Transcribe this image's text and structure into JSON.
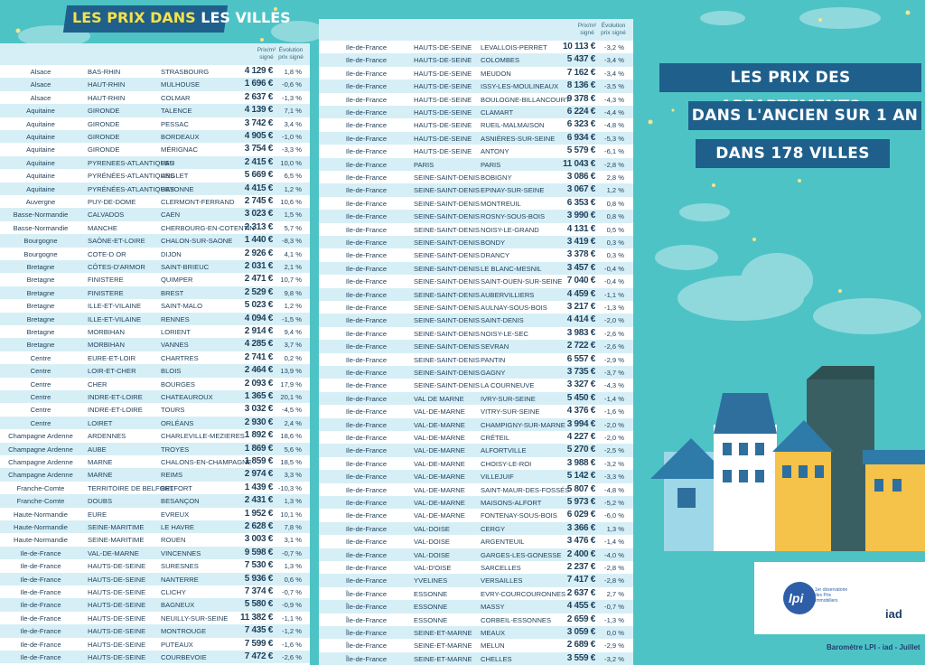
{
  "title_a": "LES PRIX DANS",
  "title_b": "LES VILLES",
  "banner": [
    "LES PRIX DES APPARTEMENTS",
    "DANS L'ANCIEN SUR 1 AN",
    "DANS 178 VILLES"
  ],
  "footer": "Baromètre LPI - iad - Juillet",
  "logos": {
    "lpi": "lpi",
    "lpi_text": "1er observatoire des Prix Immobiliers",
    "iad": "iad"
  },
  "tables": [
    {
      "header": {
        "price": "Prix/m² signé",
        "evolution": "Évolution prix signé"
      },
      "rows": [
        [
          "Alsace",
          "BAS-RHIN",
          "STRASBOURG",
          "4 129 €",
          "1,8 %"
        ],
        [
          "Alsace",
          "HAUT-RHIN",
          "MULHOUSE",
          "1 696 €",
          "-0,6 %"
        ],
        [
          "Alsace",
          "HAUT-RHIN",
          "COLMAR",
          "2 637 €",
          "-1,3 %"
        ],
        [
          "Aquitaine",
          "GIRONDE",
          "TALENCE",
          "4 139 €",
          "7,1 %"
        ],
        [
          "Aquitaine",
          "GIRONDE",
          "PESSAC",
          "3 742 €",
          "3,4 %"
        ],
        [
          "Aquitaine",
          "GIRONDE",
          "BORDEAUX",
          "4 905 €",
          "-1,0 %"
        ],
        [
          "Aquitaine",
          "GIRONDE",
          "MÉRIGNAC",
          "3 754 €",
          "-3,3 %"
        ],
        [
          "Aquitaine",
          "PYRENEES-ATLANTIQUES",
          "PAU",
          "2 415 €",
          "10,0 %"
        ],
        [
          "Aquitaine",
          "PYRÉNÉES-ATLANTIQUES",
          "ANGLET",
          "5 669 €",
          "6,5 %"
        ],
        [
          "Aquitaine",
          "PYRÉNÉES-ATLANTIQUES",
          "BAYONNE",
          "4 415 €",
          "1,2 %"
        ],
        [
          "Auvergne",
          "PUY-DE-DOME",
          "CLERMONT-FERRAND",
          "2 745 €",
          "10,6 %"
        ],
        [
          "Basse-Normandie",
          "CALVADOS",
          "CAEN",
          "3 023 €",
          "1,5 %"
        ],
        [
          "Basse-Normandie",
          "MANCHE",
          "CHERBOURG-EN-COTENTIN",
          "2 313 €",
          "5,7 %"
        ],
        [
          "Bourgogne",
          "SAÔNE-ET-LOIRE",
          "CHALON-SUR-SAONE",
          "1 440 €",
          "-8,3 %"
        ],
        [
          "Bourgogne",
          "COTE-D OR",
          "DIJON",
          "2 926 €",
          "4,1 %"
        ],
        [
          "Bretagne",
          "CÔTES-D'ARMOR",
          "SAINT-BRIEUC",
          "2 031 €",
          "2,1 %"
        ],
        [
          "Bretagne",
          "FINISTERE",
          "QUIMPER",
          "2 471 €",
          "10,7 %"
        ],
        [
          "Bretagne",
          "FINISTERE",
          "BREST",
          "2 529 €",
          "9,8 %"
        ],
        [
          "Bretagne",
          "ILLE-ET-VILAINE",
          "SAINT-MALO",
          "5 023 €",
          "1,2 %"
        ],
        [
          "Bretagne",
          "ILLE-ET-VILAINE",
          "RENNES",
          "4 094 €",
          "-1,5 %"
        ],
        [
          "Bretagne",
          "MORBIHAN",
          "LORIENT",
          "2 914 €",
          "9,4 %"
        ],
        [
          "Bretagne",
          "MORBIHAN",
          "VANNES",
          "4 285 €",
          "3,7 %"
        ],
        [
          "Centre",
          "EURE-ET-LOIR",
          "CHARTRES",
          "2 741 €",
          "0,2 %"
        ],
        [
          "Centre",
          "LOIR-ET-CHER",
          "BLOIS",
          "2 464 €",
          "13,9 %"
        ],
        [
          "Centre",
          "CHER",
          "BOURGES",
          "2 093 €",
          "17,9 %"
        ],
        [
          "Centre",
          "INDRE-ET-LOIRE",
          "CHATEAUROUX",
          "1 365 €",
          "20,1 %"
        ],
        [
          "Centre",
          "INDRE-ET-LOIRE",
          "TOURS",
          "3 032 €",
          "-4,5 %"
        ],
        [
          "Centre",
          "LOIRET",
          "ORLÉANS",
          "2 930 €",
          "2,4 %"
        ],
        [
          "Champagne Ardenne",
          "ARDENNES",
          "CHARLEVILLE-MEZIERES",
          "1 892 €",
          "18,6 %"
        ],
        [
          "Champagne Ardenne",
          "AUBE",
          "TROYES",
          "1 869 €",
          "5,6 %"
        ],
        [
          "Champagne Ardenne",
          "MARNE",
          "CHALONS-EN-CHAMPAGNE",
          "1 859 €",
          "18,5 %"
        ],
        [
          "Champagne Ardenne",
          "MARNE",
          "REIMS",
          "2 974 €",
          "3,3 %"
        ],
        [
          "Franche-Comte",
          "TERRITOIRE DE BELFORT",
          "BELFORT",
          "1 439 €",
          "-10,3 %"
        ],
        [
          "Franche-Comte",
          "DOUBS",
          "BESANÇON",
          "2 431 €",
          "1,3 %"
        ],
        [
          "Haute-Normandie",
          "EURE",
          "EVREUX",
          "1 952 €",
          "10,1 %"
        ],
        [
          "Haute-Normandie",
          "SEINE-MARITIME",
          "LE HAVRE",
          "2 628 €",
          "7,8 %"
        ],
        [
          "Haute-Normandie",
          "SEINE-MARITIME",
          "ROUEN",
          "3 003 €",
          "3,1 %"
        ],
        [
          "Ile-de-France",
          "VAL-DE-MARNE",
          "VINCENNES",
          "9 598 €",
          "-0,7 %"
        ],
        [
          "Ile-de-France",
          "HAUTS-DE-SEINE",
          "SURESNES",
          "7 530 €",
          "1,3 %"
        ],
        [
          "Ile-de-France",
          "HAUTS-DE-SEINE",
          "NANTERRE",
          "5 936 €",
          "0,6 %"
        ],
        [
          "Ile-de-France",
          "HAUTS-DE-SEINE",
          "CLICHY",
          "7 374 €",
          "-0,7 %"
        ],
        [
          "Ile-de-France",
          "HAUTS-DE-SEINE",
          "BAGNEUX",
          "5 580 €",
          "-0,9 %"
        ],
        [
          "Ile-de-France",
          "HAUTS-DE-SEINE",
          "NEUILLY-SUR-SEINE",
          "11 382 €",
          "-1,1 %"
        ],
        [
          "Ile-de-France",
          "HAUTS-DE-SEINE",
          "MONTROUGE",
          "7 435 €",
          "-1,2 %"
        ],
        [
          "Ile-de-France",
          "HAUTS-DE-SEINE",
          "PUTEAUX",
          "7 599 €",
          "-1,6 %"
        ],
        [
          "Ile-de-France",
          "HAUTS-DE-SEINE",
          "COURBEVOIE",
          "7 472 €",
          "-2,6 %"
        ]
      ]
    },
    {
      "header": {
        "price": "Prix/m² signé",
        "evolution": "Évolution prix signé"
      },
      "rows": [
        [
          "Ile-de-France",
          "HAUTS-DE-SEINE",
          "LEVALLOIS-PERRET",
          "10 113 €",
          "-3,2 %"
        ],
        [
          "Ile-de-France",
          "HAUTS-DE-SEINE",
          "COLOMBES",
          "5 437 €",
          "-3,4 %"
        ],
        [
          "Ile-de-France",
          "HAUTS-DE-SEINE",
          "MEUDON",
          "7 162 €",
          "-3,4 %"
        ],
        [
          "Ile-de-France",
          "HAUTS-DE-SEINE",
          "ISSY-LES-MOULINEAUX",
          "8 136 €",
          "-3,5 %"
        ],
        [
          "Ile-de-France",
          "HAUTS-DE-SEINE",
          "BOULOGNE-BILLANCOURT",
          "9 378 €",
          "-4,3 %"
        ],
        [
          "Ile-de-France",
          "HAUTS-DE-SEINE",
          "CLAMART",
          "6 224 €",
          "-4,4 %"
        ],
        [
          "Ile-de-France",
          "HAUTS-DE-SEINE",
          "RUEIL-MALMAISON",
          "6 323 €",
          "-4,8 %"
        ],
        [
          "Ile-de-France",
          "HAUTS-DE-SEINE",
          "ASNIÈRES-SUR-SEINE",
          "6 934 €",
          "-5,3 %"
        ],
        [
          "Ile-de-France",
          "HAUTS-DE-SEINE",
          "ANTONY",
          "5 579 €",
          "-6,1 %"
        ],
        [
          "Ile-de-France",
          "PARIS",
          "PARIS",
          "11 043 €",
          "-2,8 %"
        ],
        [
          "Ile-de-France",
          "SEINE-SAINT-DENIS",
          "BOBIGNY",
          "3 086 €",
          "2,8 %"
        ],
        [
          "Ile-de-France",
          "SEINE-SAINT-DENIS",
          "EPINAY-SUR-SEINE",
          "3 067 €",
          "1,2 %"
        ],
        [
          "Ile-de-France",
          "SEINE-SAINT-DENIS",
          "MONTREUIL",
          "6 353 €",
          "0,8 %"
        ],
        [
          "Ile-de-France",
          "SEINE-SAINT-DENIS",
          "ROSNY-SOUS-BOIS",
          "3 990 €",
          "0,8 %"
        ],
        [
          "Ile-de-France",
          "SEINE-SAINT-DENIS",
          "NOISY-LE-GRAND",
          "4 131 €",
          "0,5 %"
        ],
        [
          "Ile-de-France",
          "SEINE-SAINT-DENIS",
          "BONDY",
          "3 419 €",
          "0,3 %"
        ],
        [
          "Ile-de-France",
          "SEINE-SAINT-DENIS",
          "DRANCY",
          "3 378 €",
          "0,3 %"
        ],
        [
          "Ile-de-France",
          "SEINE-SAINT-DENIS",
          "LE BLANC-MESNIL",
          "3 457 €",
          "-0,4 %"
        ],
        [
          "Ile-de-France",
          "SEINE-SAINT-DENIS",
          "SAINT-OUEN-SUR-SEINE",
          "7 040 €",
          "-0,4 %"
        ],
        [
          "Ile-de-France",
          "SEINE-SAINT-DENIS",
          "AUBERVILLIERS",
          "4 459 €",
          "-1,1 %"
        ],
        [
          "Ile-de-France",
          "SEINE-SAINT-DENIS",
          "AULNAY-SOUS-BOIS",
          "3 217 €",
          "-1,3 %"
        ],
        [
          "Ile-de-France",
          "SEINE-SAINT-DENIS",
          "SAINT-DENIS",
          "4 414 €",
          "-2,0 %"
        ],
        [
          "Ile-de-France",
          "SEINE-SAINT-DENIS",
          "NOISY-LE-SEC",
          "3 983 €",
          "-2,6 %"
        ],
        [
          "Ile-de-France",
          "SEINE-SAINT-DENIS",
          "SEVRAN",
          "2 722 €",
          "-2,6 %"
        ],
        [
          "Ile-de-France",
          "SEINE-SAINT-DENIS",
          "PANTIN",
          "6 557 €",
          "-2,9 %"
        ],
        [
          "Ile-de-France",
          "SEINE-SAINT-DENIS",
          "GAGNY",
          "3 735 €",
          "-3,7 %"
        ],
        [
          "Ile-de-France",
          "SEINE-SAINT-DENIS",
          "LA COURNEUVE",
          "3 327 €",
          "-4,3 %"
        ],
        [
          "Ile-de-France",
          "VAL DE MARNE",
          "IVRY-SUR-SEINE",
          "5 450 €",
          "-1,4 %"
        ],
        [
          "Ile-de-France",
          "VAL-DE-MARNE",
          "VITRY-SUR-SEINE",
          "4 376 €",
          "-1,6 %"
        ],
        [
          "Ile-de-France",
          "VAL-DE-MARNE",
          "CHAMPIGNY-SUR-MARNE",
          "3 994 €",
          "-2,0 %"
        ],
        [
          "Ile-de-France",
          "VAL-DE-MARNE",
          "CRÉTEIL",
          "4 227 €",
          "-2,0 %"
        ],
        [
          "Ile-de-France",
          "VAL-DE-MARNE",
          "ALFORTVILLE",
          "5 270 €",
          "-2,5 %"
        ],
        [
          "Ile-de-France",
          "VAL-DE-MARNE",
          "CHOISY-LE-ROI",
          "3 988 €",
          "-3,2 %"
        ],
        [
          "Ile-de-France",
          "VAL-DE-MARNE",
          "VILLEJUIF",
          "5 142 €",
          "-3,3 %"
        ],
        [
          "Ile-de-France",
          "VAL-DE-MARNE",
          "SAINT-MAUR-DES-FOSSÉS",
          "5 807 €",
          "-4,8 %"
        ],
        [
          "Ile-de-France",
          "VAL-DE-MARNE",
          "MAISONS-ALFORT",
          "5 973 €",
          "-5,2 %"
        ],
        [
          "Ile-de-France",
          "VAL-DE-MARNE",
          "FONTENAY-SOUS-BOIS",
          "6 029 €",
          "-6,0 %"
        ],
        [
          "Ile-de-France",
          "VAL-DOISE",
          "CERGY",
          "3 366 €",
          "1,3 %"
        ],
        [
          "Ile-de-France",
          "VAL-DOISE",
          "ARGENTEUIL",
          "3 476 €",
          "-1,4 %"
        ],
        [
          "Ile-de-France",
          "VAL-DOISE",
          "GARGES-LES-GONESSE",
          "2 400 €",
          "-4,0 %"
        ],
        [
          "Ile-de-France",
          "VAL-D'OISE",
          "SARCELLES",
          "2 237 €",
          "-2,8 %"
        ],
        [
          "Ile-de-France",
          "YVELINES",
          "VERSAILLES",
          "7 417 €",
          "-2,8 %"
        ],
        [
          "Île-de-France",
          "ESSONNE",
          "EVRY-COURCOURONNES",
          "2 637 €",
          "2,7 %"
        ],
        [
          "Île-de-France",
          "ESSONNE",
          "MASSY",
          "4 455 €",
          "-0,7 %"
        ],
        [
          "Île-de-France",
          "ESSONNE",
          "CORBEIL-ESSONNES",
          "2 659 €",
          "-1,3 %"
        ],
        [
          "Île-de-France",
          "SEINE-ET-MARNE",
          "MEAUX",
          "3 059 €",
          "0,0 %"
        ],
        [
          "Île-de-France",
          "SEINE-ET-MARNE",
          "MELUN",
          "2 689 €",
          "-2,9 %"
        ],
        [
          "Île-de-France",
          "SEINE-ET-MARNE",
          "CHELLES",
          "3 559 €",
          "-3,2 %"
        ]
      ]
    }
  ]
}
